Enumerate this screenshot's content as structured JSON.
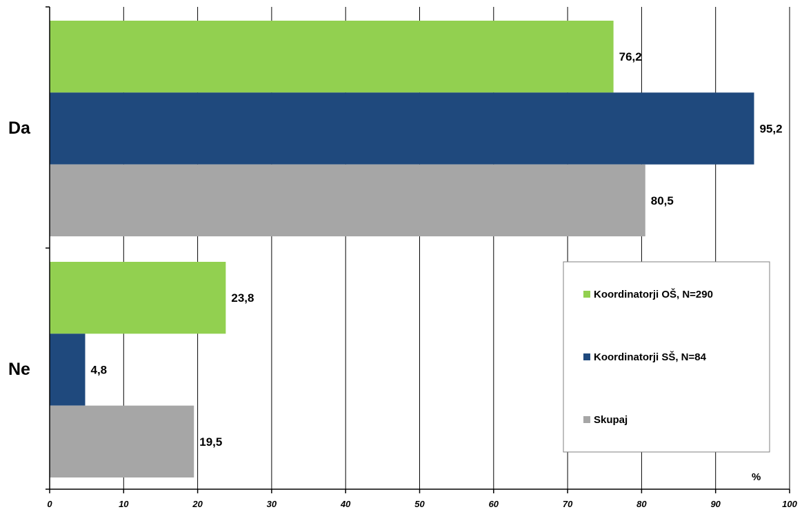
{
  "chart_data": {
    "type": "bar",
    "orientation": "horizontal",
    "categories": [
      "Da",
      "Ne"
    ],
    "series": [
      {
        "name": "Koordinatorji OŠ, N=290",
        "color": "#92d050",
        "values": [
          76.2,
          23.8
        ],
        "labels": [
          "76,2",
          "23,8"
        ]
      },
      {
        "name": "Koordinatorji SŠ, N=84",
        "color": "#1f497d",
        "values": [
          95.2,
          4.8
        ],
        "labels": [
          "95,2",
          "4,8"
        ]
      },
      {
        "name": "Skupaj",
        "color": "#a6a6a6",
        "values": [
          80.5,
          19.5
        ],
        "labels": [
          "80,5",
          "19,5"
        ]
      }
    ],
    "xlim": [
      0,
      100
    ],
    "xticks": [
      0,
      10,
      20,
      30,
      40,
      50,
      60,
      70,
      80,
      90,
      100
    ],
    "xunit": "%",
    "grid": true,
    "legend": "right"
  }
}
